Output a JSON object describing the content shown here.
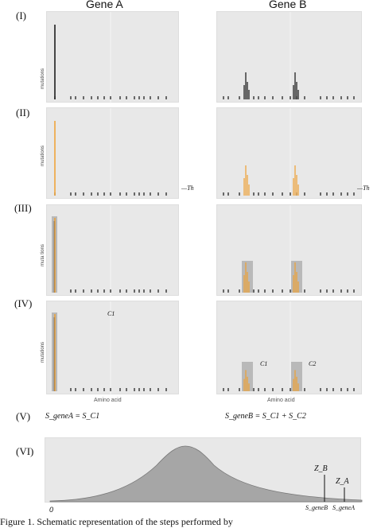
{
  "columns": {
    "gene_a": "Gene A",
    "gene_b": "Gene B"
  },
  "steps": [
    "(I)",
    "(II)",
    "(III)",
    "(IV)",
    "(V)",
    "(VI)"
  ],
  "axis": {
    "mutations": "mutations",
    "mutations_spaced": "muta tions",
    "amino_acid": "Amino acid"
  },
  "threshold_label": "Th",
  "cluster_labels": {
    "c1": "C1",
    "c2": "C2"
  },
  "formula_a": "S_geneA = S_C1",
  "formula_b": "S_geneB = S_C1 + S_C2",
  "distribution": {
    "origin": "0",
    "z_b": "Z_B",
    "z_a": "Z_A",
    "s_b": "S_geneB",
    "s_a": "S_geneA"
  },
  "caption": "Figure 1. Schematic representation of the steps performed by",
  "colors": {
    "panel_bg": "#e8e8e8",
    "orange": "#f0a030",
    "highlight": "#b9b9b9",
    "curve_fill": "#a6a6a6"
  }
}
